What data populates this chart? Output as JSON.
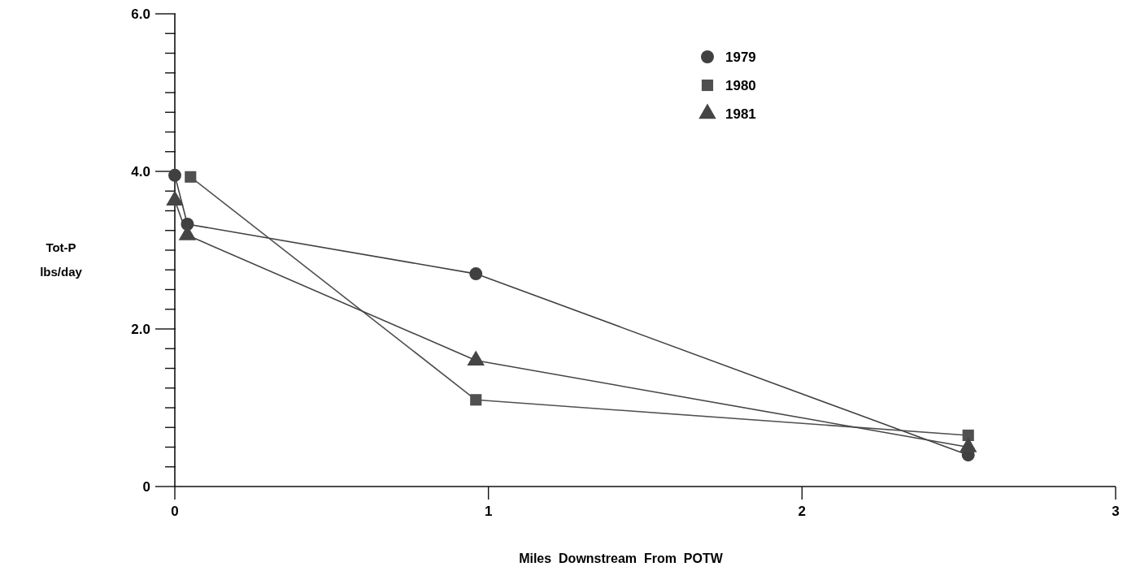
{
  "chart_data": {
    "type": "line",
    "xlabel": "Miles  Downstream  From  POTW",
    "ylabel": "Tot-P\nlbs/day",
    "xlim": [
      0,
      3
    ],
    "ylim": [
      0,
      6
    ],
    "xticks": [
      0,
      1,
      2,
      3
    ],
    "yticks": [
      0,
      {
        "value": 0.25,
        "label": null
      },
      {
        "value": 0.5,
        "label": null
      },
      {
        "value": 0.75,
        "label": null
      },
      {
        "value": 1,
        "label": null
      },
      {
        "value": 1.25,
        "label": null
      },
      {
        "value": 1.5,
        "label": null
      },
      {
        "value": 1.75,
        "label": null
      },
      {
        "value": 2,
        "label": "2.0"
      },
      {
        "value": 2.25,
        "label": null
      },
      {
        "value": 2.5,
        "label": null
      },
      {
        "value": 2.75,
        "label": null
      },
      {
        "value": 3,
        "label": null
      },
      {
        "value": 3.25,
        "label": null
      },
      {
        "value": 3.5,
        "label": null
      },
      {
        "value": 3.75,
        "label": null
      },
      {
        "value": 4,
        "label": "4.0"
      },
      {
        "value": 4.25,
        "label": null
      },
      {
        "value": 4.5,
        "label": null
      },
      {
        "value": 4.75,
        "label": null
      },
      {
        "value": 5,
        "label": null
      },
      {
        "value": 5.25,
        "label": null
      },
      {
        "value": 5.5,
        "label": null
      },
      {
        "value": 5.75,
        "label": null
      },
      {
        "value": 6,
        "label": "6.0"
      }
    ],
    "grid": false,
    "legend": "top right",
    "line_style": "solid",
    "series": [
      {
        "name": "1979",
        "color": "#404040",
        "marker": "circle",
        "x": [
          0,
          0.04,
          0.96,
          2.53
        ],
        "values": [
          3.95,
          3.33,
          2.7,
          0.4
        ]
      },
      {
        "name": "1980",
        "color": "#505050",
        "marker": "square",
        "x": [
          0.05,
          0.96,
          2.53
        ],
        "values": [
          3.93,
          1.1,
          0.65
        ]
      },
      {
        "name": "1981",
        "color": "#454545",
        "marker": "triangle",
        "x": [
          0,
          0.04,
          0.96,
          2.53
        ],
        "values": [
          3.63,
          3.19,
          1.6,
          0.5
        ]
      }
    ]
  }
}
